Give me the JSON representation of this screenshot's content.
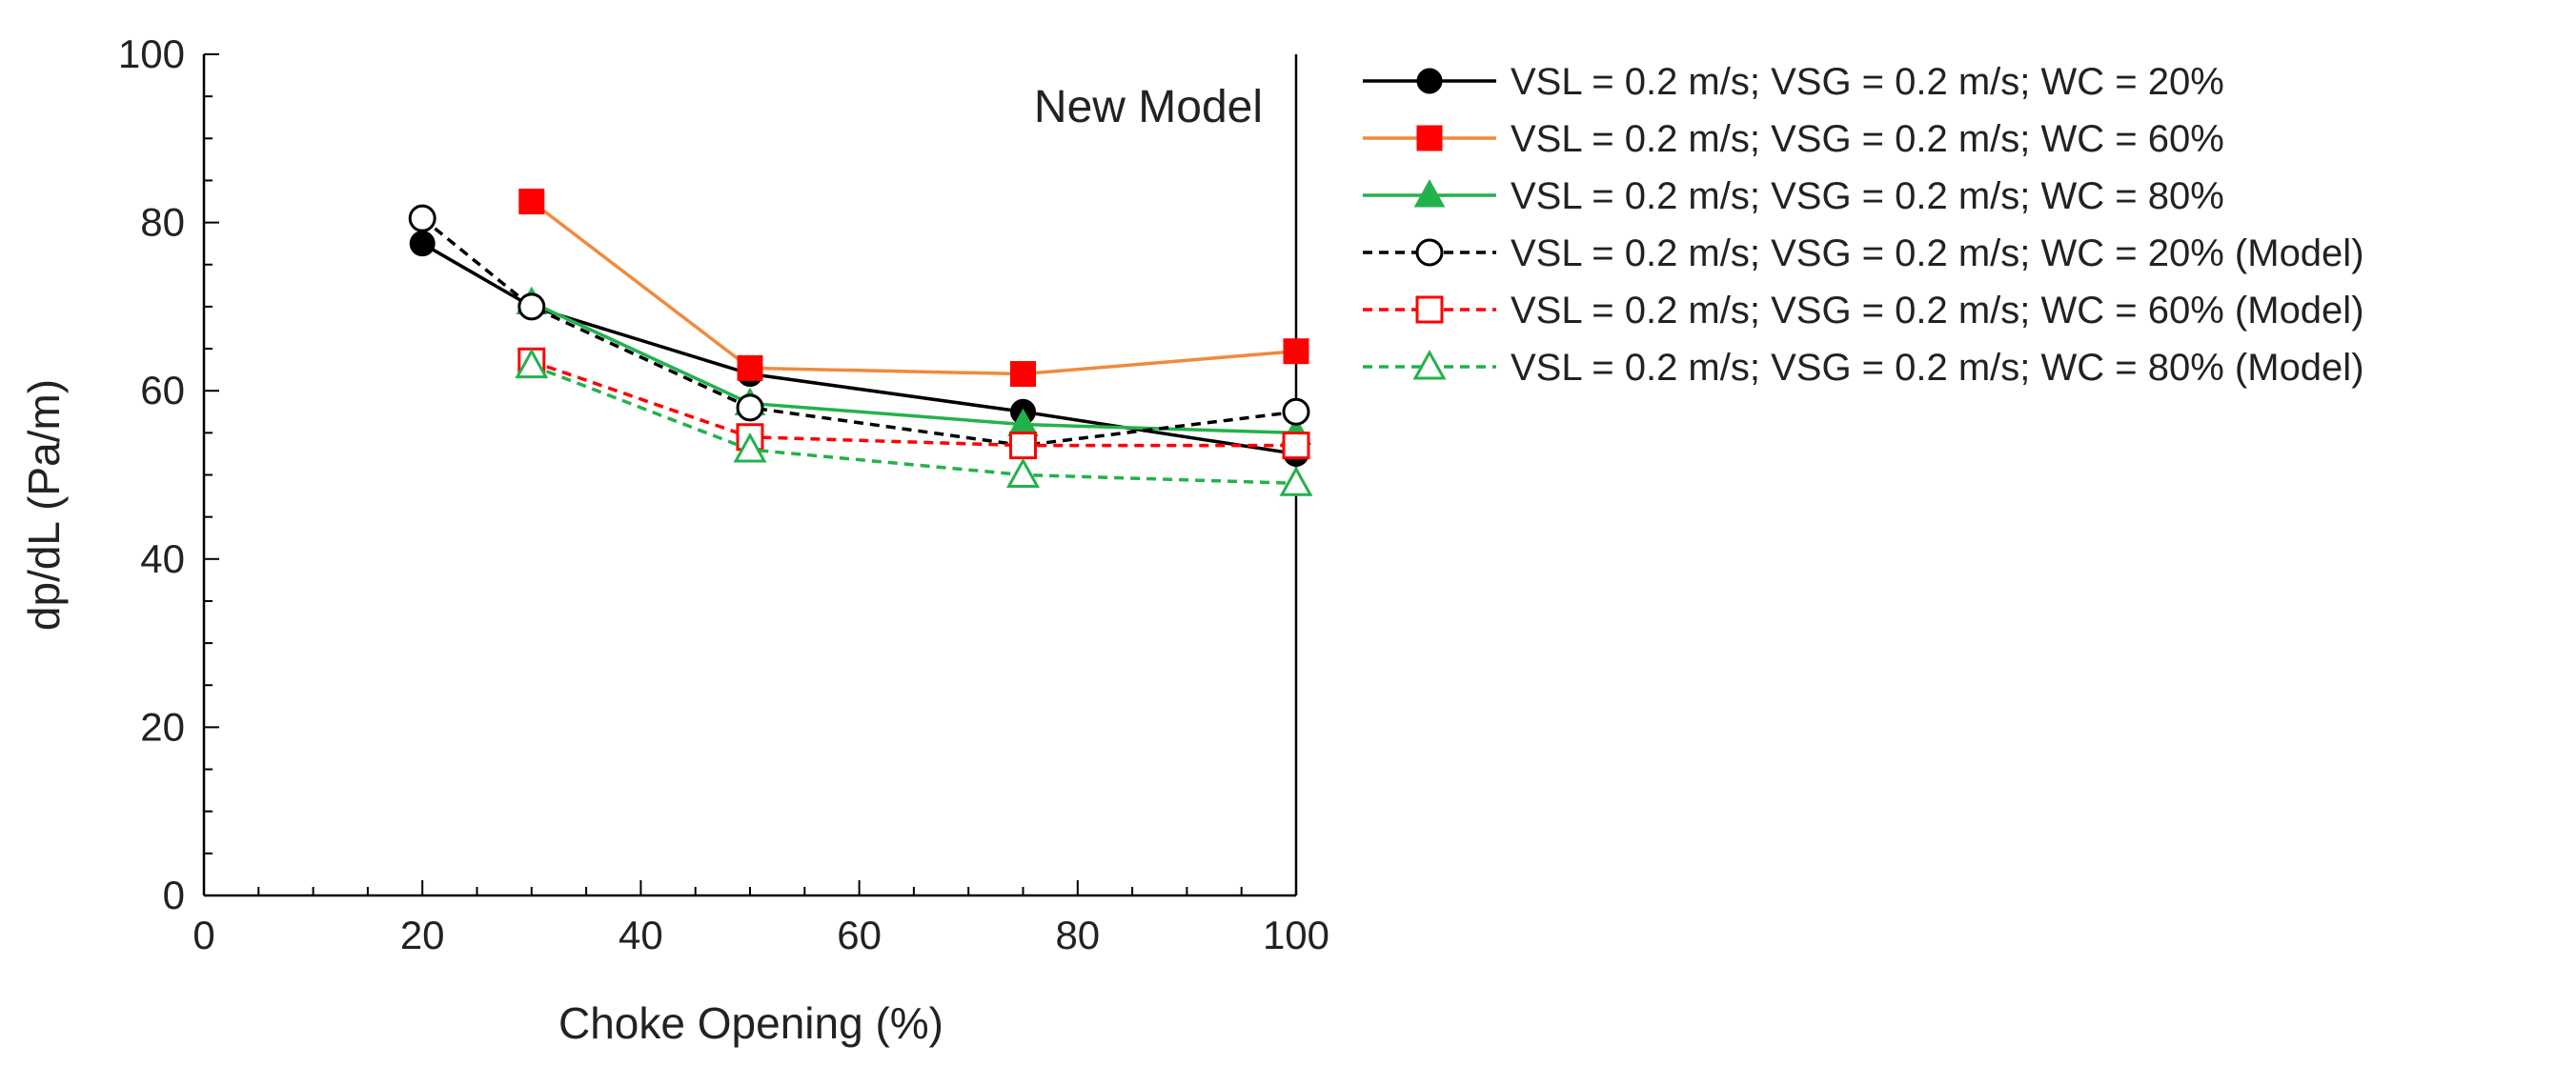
{
  "chart_data": {
    "type": "line",
    "title": "",
    "annotation": "New Model",
    "xlabel": "Choke Opening (%)",
    "ylabel": "dp/dL (Pa/m)",
    "xlim": [
      0,
      100
    ],
    "ylim": [
      0,
      100
    ],
    "xticks": [
      0,
      20,
      40,
      60,
      80,
      100
    ],
    "yticks": [
      0,
      20,
      40,
      60,
      80,
      100
    ],
    "grid": false,
    "legend_position": "right",
    "series": [
      {
        "name": "VSL = 0.2 m/s; VSG = 0.2 m/s; WC = 20%",
        "color": "#000000",
        "dash": "solid",
        "marker": "circle",
        "filled": true,
        "x": [
          20,
          30,
          50,
          75,
          100
        ],
        "y": [
          77.5,
          70,
          62,
          57.5,
          52.5
        ]
      },
      {
        "name": "VSL = 0.2 m/s; VSG = 0.2 m/s; WC = 60%",
        "color": "#f08a3c",
        "marker_color": "#ff0000",
        "dash": "solid",
        "marker": "square",
        "filled": true,
        "x": [
          30,
          50,
          75,
          100
        ],
        "y": [
          82.5,
          62.7,
          62,
          64.7
        ]
      },
      {
        "name": "VSL = 0.2 m/s; VSG = 0.2 m/s; WC = 80%",
        "color": "#22b24c",
        "dash": "solid",
        "marker": "triangle",
        "filled": true,
        "x": [
          30,
          50,
          75,
          100
        ],
        "y": [
          70.5,
          58.5,
          56,
          55
        ]
      },
      {
        "name": "VSL = 0.2 m/s; VSG = 0.2 m/s; WC = 20% (Model)",
        "color": "#000000",
        "dash": "dashed",
        "marker": "circle",
        "filled": false,
        "x": [
          20,
          30,
          50,
          75,
          100
        ],
        "y": [
          80.5,
          70,
          58,
          53.5,
          57.5
        ]
      },
      {
        "name": "VSL = 0.2 m/s; VSG = 0.2 m/s; WC = 60% (Model)",
        "color": "#ff0000",
        "dash": "dashed",
        "marker": "square",
        "filled": false,
        "x": [
          30,
          50,
          75,
          100
        ],
        "y": [
          63.5,
          54.5,
          53.5,
          53.5
        ]
      },
      {
        "name": "VSL = 0.2 m/s; VSG = 0.2 m/s; WC = 80% (Model)",
        "color": "#22b24c",
        "dash": "dashed",
        "marker": "triangle",
        "filled": false,
        "x": [
          30,
          50,
          75,
          100
        ],
        "y": [
          63,
          53,
          50,
          49
        ]
      }
    ]
  }
}
